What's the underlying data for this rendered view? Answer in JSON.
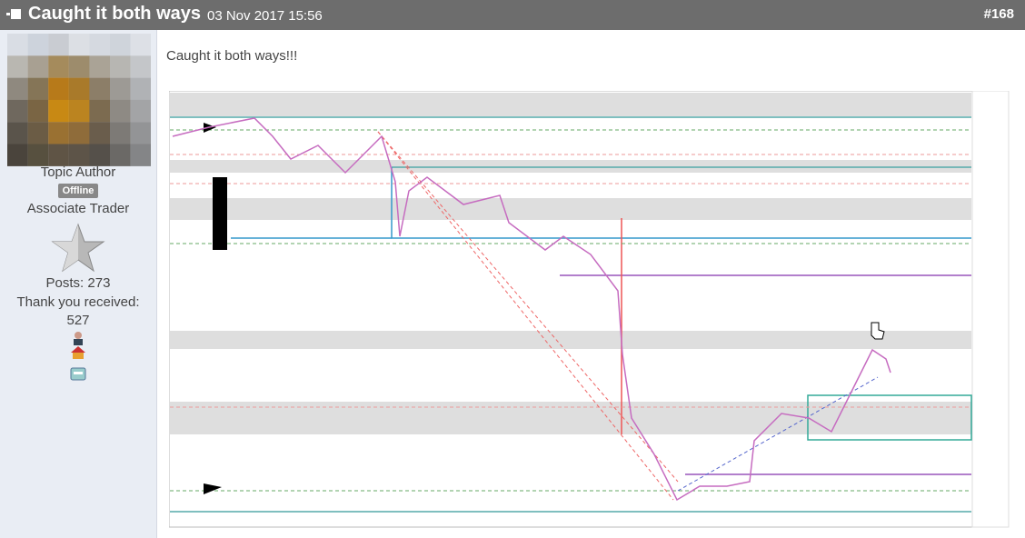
{
  "header": {
    "title": "Caught it both ways",
    "date": "03 Nov 2017 15:56",
    "post_number": "#168"
  },
  "author": {
    "role": "Topic Author",
    "status": "Offline",
    "rank": "Associate Trader",
    "posts": "Posts: 273",
    "thanks_label": "Thank you received:",
    "thanks": "527"
  },
  "post": {
    "text": "Caught it both ways!!!"
  }
}
